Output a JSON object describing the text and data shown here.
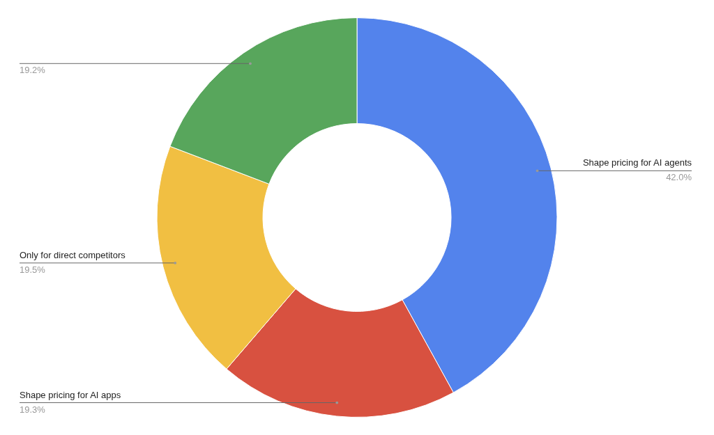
{
  "chart_data": {
    "type": "donut",
    "categories": [
      "Shape pricing for AI agents",
      "Shape pricing for AI apps",
      "Only for direct competitors",
      null
    ],
    "values": [
      42.0,
      19.3,
      19.5,
      19.2
    ],
    "value_labels": [
      "42.0%",
      "19.3%",
      "19.5%",
      "19.2%"
    ],
    "colors": [
      "#5383ec",
      "#d85140",
      "#f1bf42",
      "#58a65c"
    ]
  }
}
